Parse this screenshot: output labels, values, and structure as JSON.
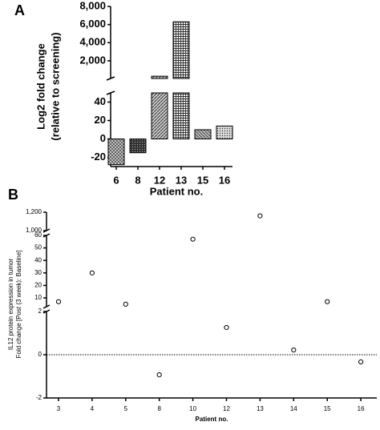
{
  "chart_data": [
    {
      "type": "bar",
      "label": "A",
      "y_label": [
        "Log2 fold change",
        "(relative to screening)"
      ],
      "x_label": "Patient no.",
      "categories": [
        "6",
        "8",
        "12",
        "13",
        "15",
        "16"
      ],
      "values": [
        -28,
        -15,
        300,
        6300,
        10,
        14
      ],
      "y_segments": [
        {
          "ylim": [
            -30,
            50
          ],
          "yticks": [
            -20,
            0,
            20,
            40
          ]
        },
        {
          "ylim": [
            50,
            8000
          ],
          "yticks": [
            {
              "value": 2000,
              "label": "2,000"
            },
            {
              "value": 4000,
              "label": "4,000"
            },
            {
              "value": 6000,
              "label": "6,000"
            },
            {
              "value": 8000,
              "label": "8,000"
            }
          ]
        }
      ]
    },
    {
      "type": "scatter",
      "label": "B",
      "y_label": [
        "IL12 protein expression in tumor",
        "Fold change [Post (3 week): Baseline]"
      ],
      "x_label": "Patient no.",
      "categories": [
        "3",
        "4",
        "5",
        "8",
        "10",
        "12",
        "13",
        "14",
        "15",
        "16"
      ],
      "values": [
        7,
        30,
        5,
        -0.93,
        57,
        1.26,
        1160,
        0.22,
        7,
        -0.33
      ],
      "reference_line": 0,
      "y_segments": [
        {
          "ylim": [
            -2,
            2
          ],
          "yticks": [
            -2,
            0,
            2
          ]
        },
        {
          "ylim": [
            3,
            60
          ],
          "yticks": [
            10,
            20,
            30,
            40,
            50,
            60
          ]
        },
        {
          "ylim": [
            1000,
            1200
          ],
          "yticks": [
            {
              "value": 1000,
              "label": "1,000"
            },
            {
              "value": 1200,
              "label": "1,200"
            }
          ]
        }
      ]
    }
  ]
}
